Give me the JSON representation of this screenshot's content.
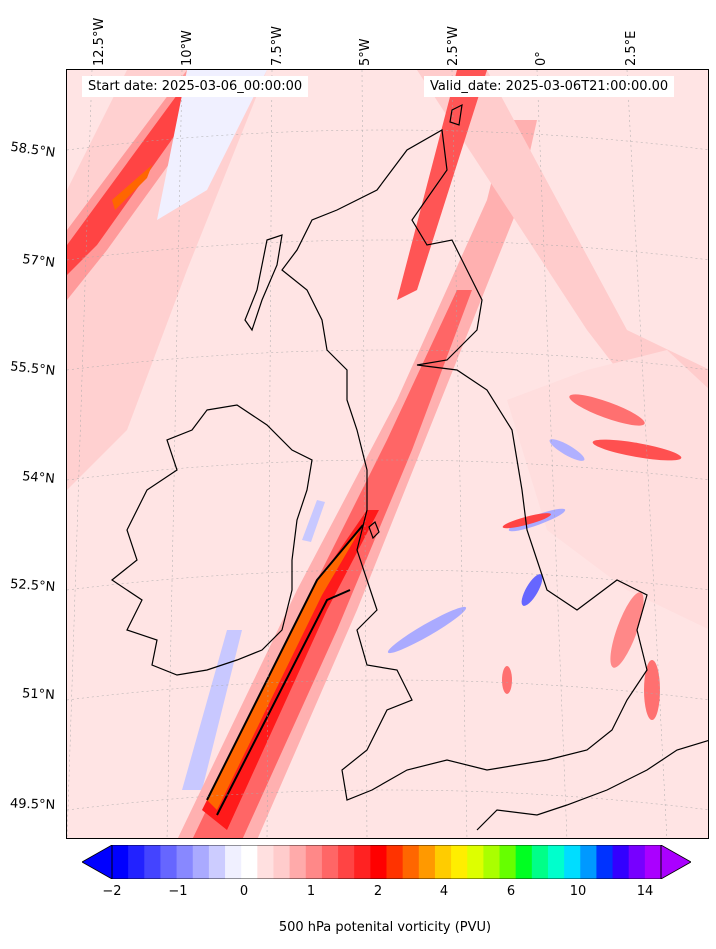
{
  "header": {
    "start_date": "Start date: 2025-03-06_00:00:00",
    "valid_date": "Valid_date: 2025-03-06T21:00:00.00"
  },
  "longitude_labels": [
    "12.5°W",
    "10°W",
    "7.5°W",
    "5°W",
    "2.5°W",
    "0°",
    "2.5°E"
  ],
  "latitude_labels": [
    "58.5°N",
    "57°N",
    "55.5°N",
    "54°N",
    "52.5°N",
    "51°N",
    "49.5°N"
  ],
  "colorbar": {
    "ticks": [
      "−2",
      "−1",
      "0",
      "1",
      "2",
      "4",
      "6",
      "10",
      "14"
    ],
    "label": "500 hPa potenital vorticity (PVU)",
    "colors": [
      "#0000ff",
      "#2222ff",
      "#4444ff",
      "#6666ff",
      "#8888ff",
      "#aaaaff",
      "#ccccff",
      "#f0f0ff",
      "#ffffff",
      "#ffe0e0",
      "#ffcccc",
      "#ffaaaa",
      "#ff8888",
      "#ff6666",
      "#ff4444",
      "#ff2222",
      "#ff0000",
      "#ff3300",
      "#ff6600",
      "#ff9900",
      "#ffcc00",
      "#ffee00",
      "#ddff00",
      "#aaff00",
      "#66ff00",
      "#00ff22",
      "#00ff88",
      "#00ffcc",
      "#00ddff",
      "#0099ff",
      "#0033ff",
      "#3300ff",
      "#7700ff",
      "#aa00ff"
    ]
  }
}
